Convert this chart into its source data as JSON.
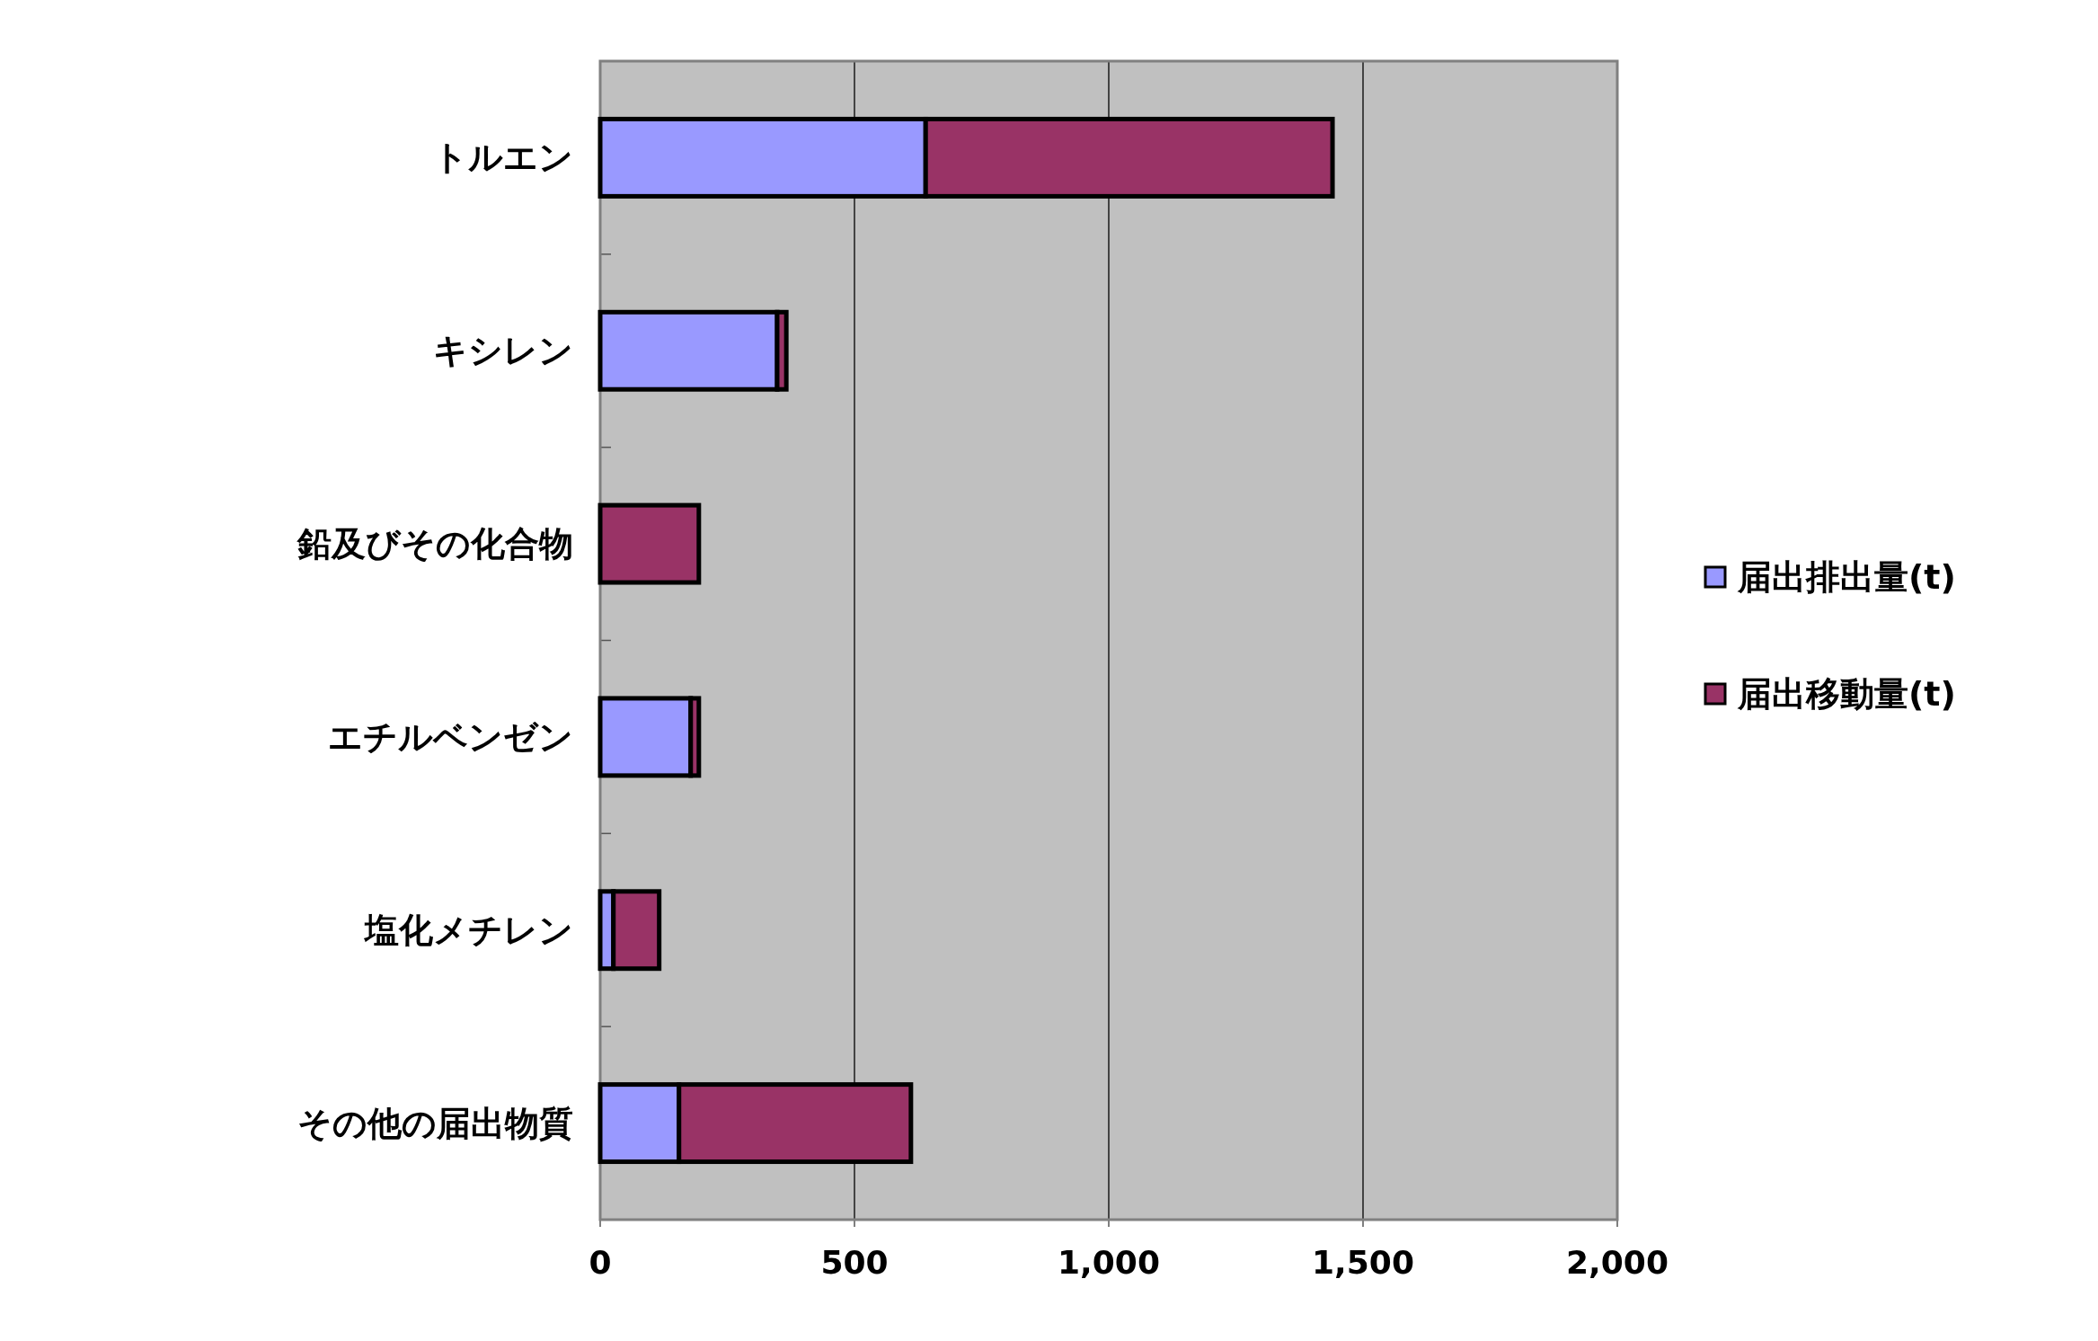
{
  "chart_data": {
    "type": "bar",
    "orientation": "horizontal",
    "stacked": true,
    "categories": [
      "トルエン",
      "キシレン",
      "鉛及びその化合物",
      "エチルベンゼン",
      "塩化メチレン",
      "その他の届出物質"
    ],
    "series": [
      {
        "name": "届出排出量(t)",
        "color": "#9999ff",
        "values": [
          640,
          348,
          0,
          178,
          26,
          155
        ]
      },
      {
        "name": "届出移動量(t)",
        "color": "#993366",
        "values": [
          800,
          18,
          194,
          16,
          90,
          456
        ]
      }
    ],
    "xlim": [
      0,
      2000
    ],
    "xticks": [
      0,
      500,
      {
        "value": 1000,
        "label": "1,000"
      },
      {
        "value": 1500,
        "label": "1,500"
      },
      {
        "value": 2000,
        "label": "2,000"
      }
    ],
    "grid": "x",
    "legend": "right"
  }
}
